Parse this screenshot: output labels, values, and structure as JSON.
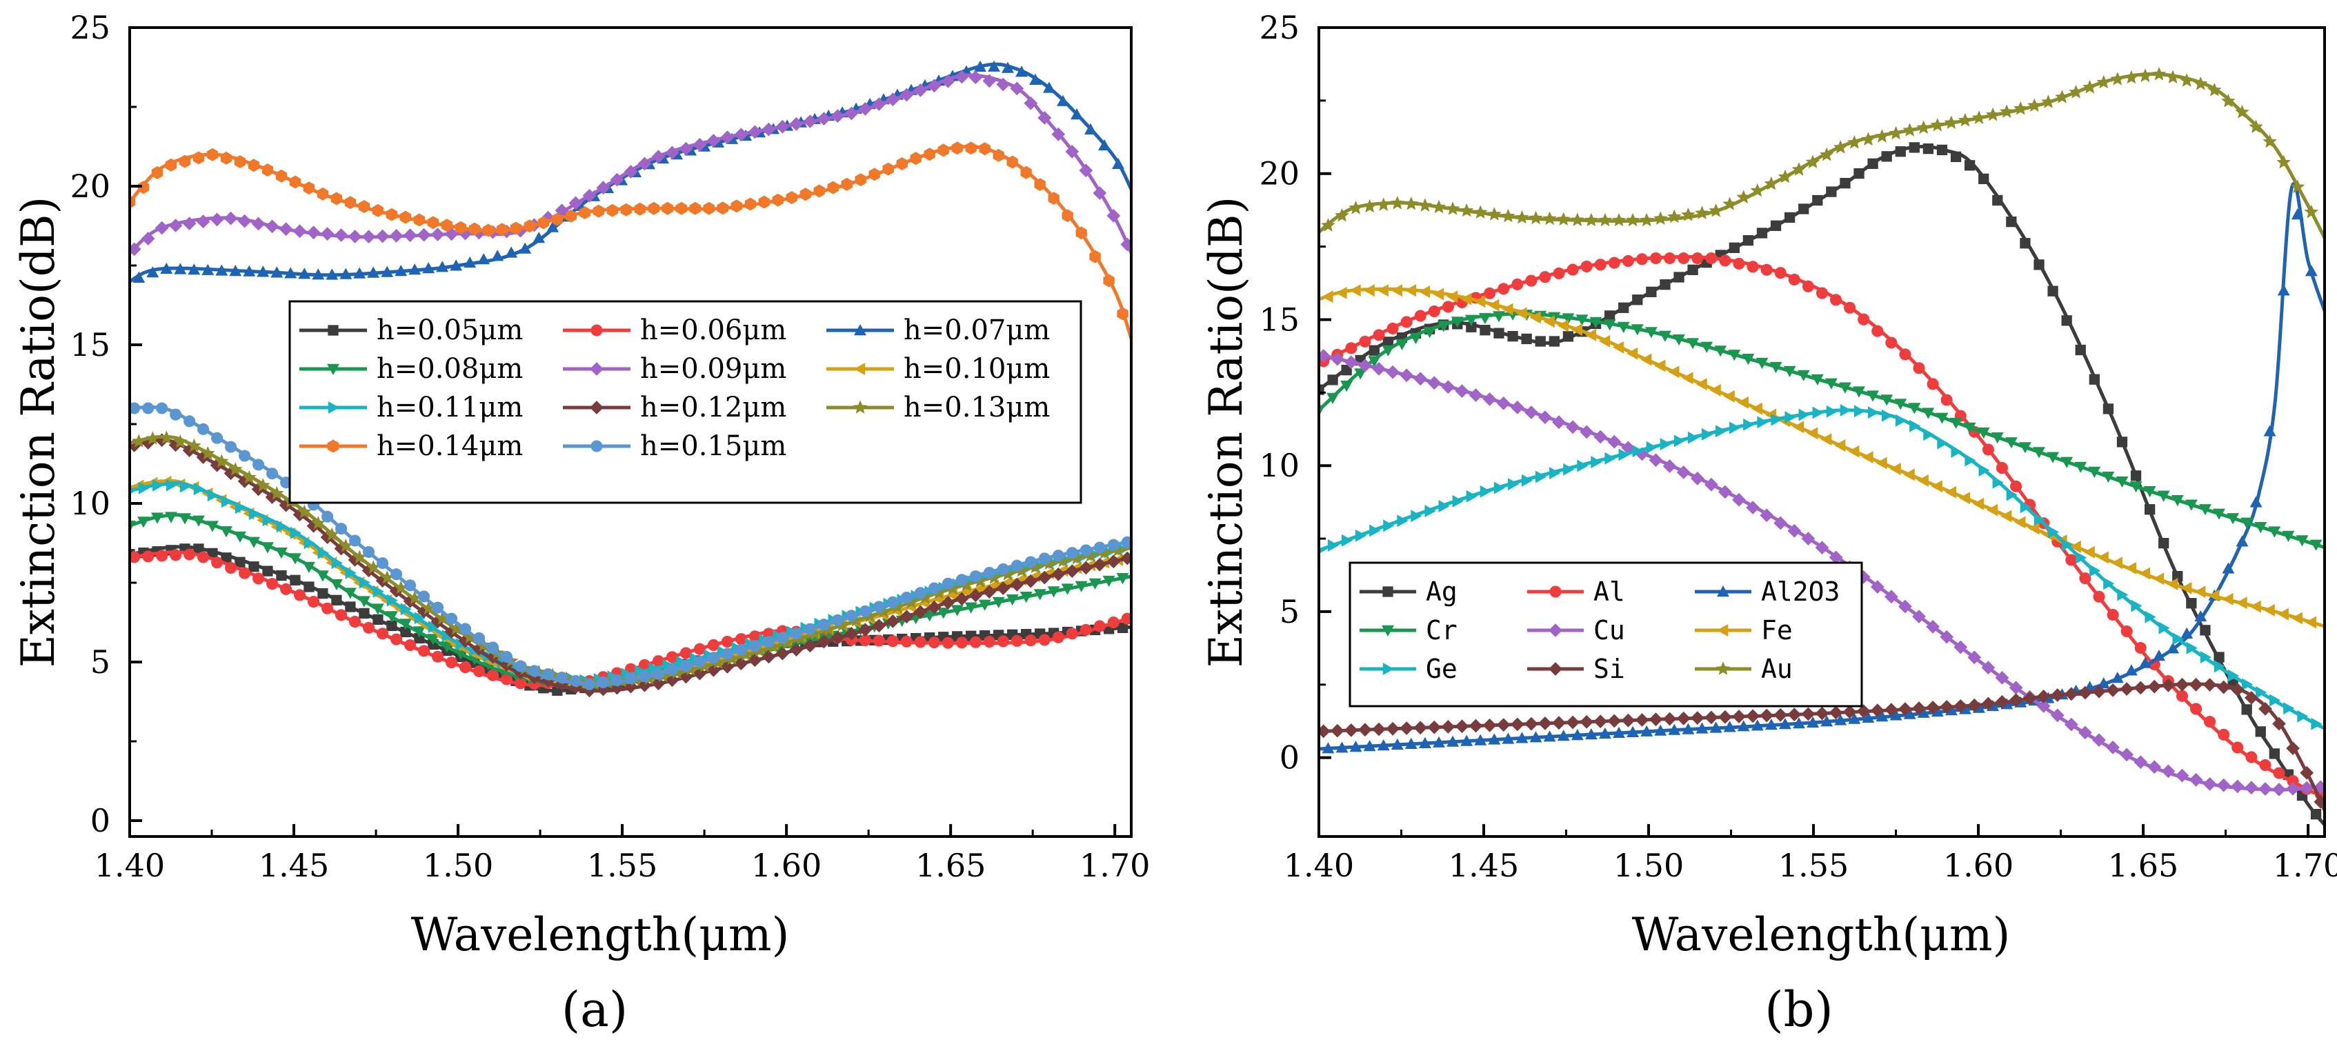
{
  "chart_data": [
    {
      "type": "line",
      "panel_label": "(a)",
      "xlabel": "Wavelength(μm)",
      "ylabel": "Extinction Ratio(dB)",
      "xlim": [
        1.4,
        1.705
      ],
      "ylim": [
        -0.5,
        25
      ],
      "xticks": [
        1.4,
        1.45,
        1.5,
        1.55,
        1.6,
        1.65,
        1.7
      ],
      "xtick_labels": [
        "1.40",
        "1.45",
        "1.50",
        "1.55",
        "1.60",
        "1.65",
        "1.70"
      ],
      "yticks": [
        0,
        5,
        10,
        15,
        20,
        25
      ],
      "ytick_labels": [
        "0",
        "5",
        "10",
        "15",
        "20",
        "25"
      ],
      "grid": false,
      "legend_position": "middle-right",
      "series": [
        {
          "name": "h=0.05μm",
          "color": "#3c3c3c",
          "marker": "square",
          "x": [
            1.4,
            1.42,
            1.45,
            1.47,
            1.5,
            1.52,
            1.53,
            1.55,
            1.57,
            1.6,
            1.63,
            1.65,
            1.68,
            1.705
          ],
          "y": [
            8.4,
            8.6,
            7.6,
            6.6,
            5.2,
            4.3,
            4.1,
            4.3,
            5.0,
            5.6,
            5.7,
            5.8,
            5.9,
            6.1
          ]
        },
        {
          "name": "h=0.06μm",
          "color": "#f03c3c",
          "marker": "circle",
          "x": [
            1.4,
            1.42,
            1.45,
            1.47,
            1.5,
            1.52,
            1.54,
            1.56,
            1.58,
            1.6,
            1.62,
            1.65,
            1.68,
            1.705
          ],
          "y": [
            8.3,
            8.4,
            7.2,
            6.2,
            4.9,
            4.3,
            4.4,
            5.0,
            5.6,
            6.0,
            5.7,
            5.6,
            5.7,
            6.4
          ]
        },
        {
          "name": "h=0.07μm",
          "color": "#1f64b4",
          "marker": "triangle-up",
          "x": [
            1.4,
            1.41,
            1.44,
            1.46,
            1.48,
            1.5,
            1.52,
            1.54,
            1.56,
            1.58,
            1.6,
            1.62,
            1.64,
            1.66,
            1.67,
            1.68,
            1.69,
            1.7,
            1.705
          ],
          "y": [
            17.0,
            17.4,
            17.3,
            17.2,
            17.3,
            17.5,
            18.0,
            19.6,
            20.8,
            21.4,
            21.9,
            22.4,
            23.1,
            23.8,
            23.7,
            23.1,
            22.1,
            20.9,
            19.9
          ]
        },
        {
          "name": "h=0.08μm",
          "color": "#199650",
          "marker": "triangle-down",
          "x": [
            1.4,
            1.41,
            1.42,
            1.45,
            1.47,
            1.5,
            1.52,
            1.54,
            1.56,
            1.58,
            1.6,
            1.63,
            1.65,
            1.68,
            1.705
          ],
          "y": [
            9.3,
            9.6,
            9.5,
            8.3,
            7.0,
            5.3,
            4.5,
            4.2,
            4.5,
            5.0,
            5.5,
            6.2,
            6.6,
            7.2,
            7.7
          ]
        },
        {
          "name": "h=0.09μm",
          "color": "#a064c8",
          "marker": "diamond",
          "x": [
            1.4,
            1.41,
            1.43,
            1.45,
            1.47,
            1.5,
            1.52,
            1.54,
            1.56,
            1.58,
            1.6,
            1.62,
            1.64,
            1.655,
            1.67,
            1.68,
            1.69,
            1.7,
            1.705
          ],
          "y": [
            17.9,
            18.7,
            19.0,
            18.6,
            18.4,
            18.5,
            18.6,
            19.7,
            20.9,
            21.5,
            21.9,
            22.3,
            23.0,
            23.5,
            23.1,
            22.0,
            20.7,
            19.0,
            17.9
          ]
        },
        {
          "name": "h=0.10μm",
          "color": "#d4a014",
          "marker": "triangle-left",
          "x": [
            1.4,
            1.41,
            1.42,
            1.45,
            1.47,
            1.5,
            1.52,
            1.54,
            1.56,
            1.58,
            1.6,
            1.63,
            1.65,
            1.68,
            1.705
          ],
          "y": [
            10.5,
            10.7,
            10.5,
            9.0,
            7.5,
            5.5,
            4.6,
            4.3,
            4.6,
            5.1,
            5.7,
            6.5,
            7.1,
            7.8,
            8.3
          ]
        },
        {
          "name": "h=0.11μm",
          "color": "#19b4c3",
          "marker": "triangle-right",
          "x": [
            1.4,
            1.41,
            1.42,
            1.45,
            1.47,
            1.5,
            1.52,
            1.54,
            1.56,
            1.58,
            1.6,
            1.63,
            1.65,
            1.68,
            1.705
          ],
          "y": [
            10.4,
            10.6,
            10.5,
            9.1,
            7.6,
            5.6,
            4.7,
            4.4,
            4.8,
            5.3,
            5.9,
            6.8,
            7.4,
            8.1,
            8.6
          ]
        },
        {
          "name": "h=0.12μm",
          "color": "#783c3c",
          "marker": "diamond",
          "x": [
            1.4,
            1.41,
            1.42,
            1.45,
            1.47,
            1.5,
            1.52,
            1.54,
            1.56,
            1.58,
            1.6,
            1.63,
            1.65,
            1.68,
            1.705
          ],
          "y": [
            11.8,
            12.0,
            11.6,
            9.8,
            8.1,
            5.8,
            4.6,
            4.1,
            4.3,
            4.8,
            5.3,
            6.2,
            6.9,
            7.7,
            8.3
          ]
        },
        {
          "name": "h=0.13μm",
          "color": "#8c8c28",
          "marker": "star",
          "x": [
            1.4,
            1.41,
            1.42,
            1.45,
            1.47,
            1.5,
            1.52,
            1.54,
            1.56,
            1.58,
            1.6,
            1.63,
            1.65,
            1.68,
            1.705
          ],
          "y": [
            11.9,
            12.1,
            11.8,
            10.0,
            8.3,
            6.0,
            4.8,
            4.3,
            4.5,
            5.0,
            5.6,
            6.6,
            7.3,
            8.1,
            8.6
          ]
        },
        {
          "name": "h=0.14μm",
          "color": "#f07828",
          "marker": "hexagon",
          "x": [
            1.4,
            1.41,
            1.425,
            1.44,
            1.46,
            1.48,
            1.5,
            1.51,
            1.52,
            1.54,
            1.56,
            1.58,
            1.6,
            1.62,
            1.64,
            1.65,
            1.66,
            1.67,
            1.68,
            1.69,
            1.7,
            1.705
          ],
          "y": [
            19.5,
            20.6,
            21.0,
            20.6,
            19.7,
            19.1,
            18.7,
            18.6,
            18.7,
            19.2,
            19.3,
            19.3,
            19.6,
            20.1,
            20.9,
            21.2,
            21.2,
            20.7,
            19.8,
            18.5,
            16.7,
            15.2
          ]
        },
        {
          "name": "h=0.15μm",
          "color": "#5a96d2",
          "marker": "circle",
          "x": [
            1.4,
            1.41,
            1.42,
            1.45,
            1.47,
            1.5,
            1.52,
            1.54,
            1.56,
            1.58,
            1.6,
            1.63,
            1.65,
            1.68,
            1.705
          ],
          "y": [
            13.0,
            13.0,
            12.5,
            10.5,
            8.7,
            6.2,
            4.8,
            4.3,
            4.6,
            5.2,
            5.8,
            6.8,
            7.5,
            8.3,
            8.8
          ]
        }
      ]
    },
    {
      "type": "line",
      "panel_label": "(b)",
      "xlabel": "Wavelength(μm)",
      "ylabel": "Extinction Ratio(dB)",
      "xlim": [
        1.4,
        1.705
      ],
      "ylim": [
        -2.7,
        25
      ],
      "xticks": [
        1.4,
        1.45,
        1.5,
        1.55,
        1.6,
        1.65,
        1.7
      ],
      "xtick_labels": [
        "1.40",
        "1.45",
        "1.50",
        "1.55",
        "1.60",
        "1.65",
        "1.70"
      ],
      "yticks": [
        0,
        5,
        10,
        15,
        20,
        25
      ],
      "ytick_labels": [
        "0",
        "5",
        "10",
        "15",
        "20",
        "25"
      ],
      "grid": false,
      "legend_position": "bottom-left",
      "series": [
        {
          "name": "Ag",
          "color": "#3c3c3c",
          "marker": "square",
          "x": [
            1.4,
            1.42,
            1.44,
            1.46,
            1.47,
            1.48,
            1.5,
            1.52,
            1.54,
            1.56,
            1.57,
            1.58,
            1.59,
            1.6,
            1.62,
            1.64,
            1.66,
            1.68,
            1.69,
            1.7,
            1.705
          ],
          "y": [
            12.6,
            14.2,
            14.9,
            14.4,
            14.2,
            14.6,
            15.9,
            17.1,
            18.3,
            19.7,
            20.5,
            20.9,
            20.8,
            20.1,
            16.6,
            11.8,
            6.3,
            1.9,
            0.1,
            -1.6,
            -2.3
          ]
        },
        {
          "name": "Al",
          "color": "#f03c3c",
          "marker": "circle",
          "x": [
            1.4,
            1.43,
            1.46,
            1.48,
            1.5,
            1.52,
            1.54,
            1.56,
            1.58,
            1.6,
            1.62,
            1.64,
            1.66,
            1.68,
            1.7,
            1.705
          ],
          "y": [
            13.5,
            15.1,
            16.2,
            16.8,
            17.1,
            17.1,
            16.6,
            15.5,
            13.6,
            11.0,
            8.0,
            5.0,
            2.3,
            0.2,
            -1.1,
            -1.3
          ]
        },
        {
          "name": "Al2O3",
          "color": "#1f64b4",
          "marker": "triangle-up",
          "x": [
            1.4,
            1.45,
            1.5,
            1.55,
            1.6,
            1.62,
            1.64,
            1.66,
            1.67,
            1.68,
            1.685,
            1.69,
            1.695,
            1.7,
            1.705
          ],
          "y": [
            0.3,
            0.6,
            0.9,
            1.2,
            1.7,
            2.0,
            2.6,
            3.8,
            5.2,
            7.4,
            9.0,
            12.2,
            19.5,
            17.0,
            15.3
          ]
        },
        {
          "name": "Cr",
          "color": "#199650",
          "marker": "triangle-down",
          "x": [
            1.4,
            1.42,
            1.44,
            1.46,
            1.48,
            1.5,
            1.52,
            1.55,
            1.58,
            1.6,
            1.63,
            1.65,
            1.68,
            1.705
          ],
          "y": [
            11.9,
            13.9,
            14.9,
            15.2,
            15.0,
            14.6,
            14.0,
            13.0,
            12.0,
            11.2,
            10.0,
            9.2,
            8.1,
            7.2
          ]
        },
        {
          "name": "Cu",
          "color": "#a064c8",
          "marker": "diamond",
          "x": [
            1.4,
            1.43,
            1.46,
            1.49,
            1.52,
            1.55,
            1.58,
            1.61,
            1.63,
            1.65,
            1.67,
            1.69,
            1.705
          ],
          "y": [
            13.8,
            13.0,
            12.0,
            10.8,
            9.3,
            7.4,
            5.0,
            2.5,
            1.0,
            -0.2,
            -0.9,
            -1.1,
            -1.0
          ]
        },
        {
          "name": "Fe",
          "color": "#d4a014",
          "marker": "triangle-left",
          "x": [
            1.4,
            1.41,
            1.43,
            1.45,
            1.48,
            1.5,
            1.53,
            1.56,
            1.6,
            1.63,
            1.66,
            1.69,
            1.705
          ],
          "y": [
            15.7,
            16.0,
            16.0,
            15.6,
            14.6,
            13.6,
            12.1,
            10.6,
            8.7,
            7.2,
            5.9,
            5.0,
            4.5
          ]
        },
        {
          "name": "Ge",
          "color": "#19b4c3",
          "marker": "triangle-right",
          "x": [
            1.4,
            1.45,
            1.5,
            1.53,
            1.55,
            1.56,
            1.57,
            1.58,
            1.6,
            1.62,
            1.64,
            1.66,
            1.68,
            1.7,
            1.705
          ],
          "y": [
            7.1,
            9.1,
            10.6,
            11.4,
            11.8,
            11.9,
            11.8,
            11.4,
            10.0,
            8.0,
            5.9,
            4.1,
            2.6,
            1.3,
            1.0
          ]
        },
        {
          "name": "Si",
          "color": "#783c3c",
          "marker": "diamond",
          "x": [
            1.4,
            1.45,
            1.5,
            1.55,
            1.6,
            1.62,
            1.64,
            1.66,
            1.67,
            1.68,
            1.69,
            1.7,
            1.705
          ],
          "y": [
            0.9,
            1.1,
            1.3,
            1.5,
            1.8,
            2.1,
            2.3,
            2.5,
            2.5,
            2.3,
            1.4,
            -0.6,
            -1.8
          ]
        },
        {
          "name": "Au",
          "color": "#8c8c28",
          "marker": "star",
          "x": [
            1.4,
            1.41,
            1.425,
            1.44,
            1.46,
            1.48,
            1.5,
            1.52,
            1.54,
            1.56,
            1.58,
            1.6,
            1.62,
            1.64,
            1.655,
            1.67,
            1.68,
            1.69,
            1.7,
            1.705
          ],
          "y": [
            18.0,
            18.8,
            19.0,
            18.8,
            18.5,
            18.4,
            18.4,
            18.7,
            19.8,
            21.0,
            21.5,
            21.9,
            22.4,
            23.2,
            23.4,
            23.0,
            22.1,
            20.9,
            18.9,
            17.8
          ]
        }
      ]
    }
  ]
}
